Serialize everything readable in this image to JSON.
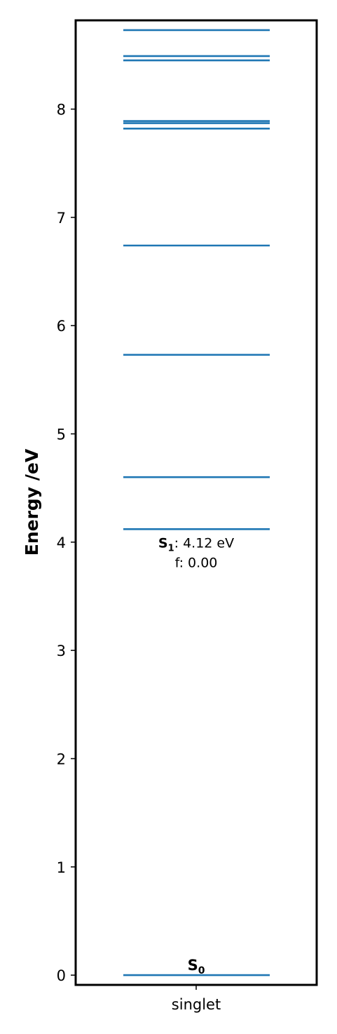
{
  "chart_data": {
    "type": "energy-level",
    "ylabel": "Energy /eV",
    "ylim": [
      -0.09,
      8.82
    ],
    "yticks": [
      0,
      1,
      2,
      3,
      4,
      5,
      6,
      7,
      8
    ],
    "categories": [
      "singlet"
    ],
    "line_color": "#1f77b4",
    "levels": [
      0.0,
      4.12,
      4.6,
      5.73,
      6.74,
      7.82,
      7.87,
      7.89,
      8.45,
      8.49,
      8.73
    ],
    "ground_state_label": "S0",
    "annotation": {
      "state": "S1",
      "energy_text": ": 4.12 eV",
      "oscillator_text": "f: 0.00"
    }
  }
}
